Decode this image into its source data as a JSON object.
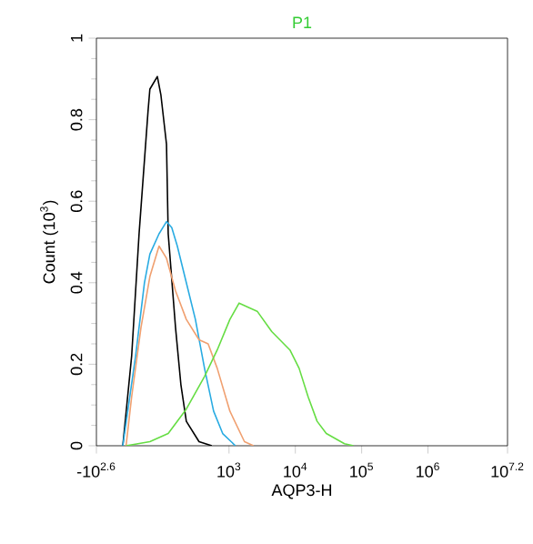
{
  "chart_data": {
    "type": "line",
    "title": "P1",
    "xlabel": "AQP3-H",
    "ylabel": "Count (10$^{3}$)",
    "log": "x",
    "xlim": [
      10,
      15850000
    ],
    "xticks": [
      {
        "value": 10,
        "label": "-10$^{2.6}$"
      },
      {
        "value": 1000,
        "label": "10$^{3}$"
      },
      {
        "value": 10000,
        "label": "10$^{4}$"
      },
      {
        "value": 100000,
        "label": "10$^{5}$"
      },
      {
        "value": 1000000,
        "label": "10$^{6}$"
      },
      {
        "value": 15850000,
        "label": "10$^{7.2}$"
      }
    ],
    "ylim": [
      0,
      1
    ],
    "yticks": [
      0,
      0.2,
      0.4,
      0.6,
      0.8,
      1
    ],
    "grid": false,
    "legend": false,
    "marker": "none",
    "line_style": "solid",
    "series": [
      {
        "color": "#000000",
        "x": [
          25,
          34,
          44,
          60,
          64,
          83,
          94,
          114,
          121,
          156,
          188,
          227,
          353,
          550
        ],
        "values": [
          0,
          0.22,
          0.52,
          0.82,
          0.875,
          0.906,
          0.86,
          0.74,
          0.52,
          0.29,
          0.15,
          0.06,
          0.01,
          0
        ]
      },
      {
        "color": "#29abe2",
        "x": [
          25,
          39,
          53,
          64,
          88,
          114,
          137,
          166,
          227,
          311,
          427,
          585,
          802,
          1250
        ],
        "values": [
          0,
          0.22,
          0.4,
          0.47,
          0.52,
          0.55,
          0.535,
          0.49,
          0.4,
          0.31,
          0.19,
          0.085,
          0.03,
          0
        ]
      },
      {
        "color": "#f0a070",
        "x": [
          28,
          34,
          47,
          64,
          88,
          114,
          156,
          227,
          353,
          484,
          664,
          1030,
          1710,
          2340
        ],
        "values": [
          0,
          0.12,
          0.29,
          0.415,
          0.49,
          0.46,
          0.38,
          0.31,
          0.26,
          0.25,
          0.19,
          0.085,
          0.01,
          0
        ]
      },
      {
        "color": "#66dd44",
        "x": [
          28,
          64,
          121,
          227,
          427,
          664,
          1030,
          1420,
          1940,
          2660,
          4410,
          8280,
          11400,
          15600,
          21300,
          29300,
          55000,
          75300
        ],
        "values": [
          0,
          0.01,
          0.03,
          0.09,
          0.17,
          0.235,
          0.31,
          0.35,
          0.34,
          0.33,
          0.28,
          0.235,
          0.19,
          0.12,
          0.06,
          0.03,
          0.005,
          0
        ]
      }
    ]
  }
}
